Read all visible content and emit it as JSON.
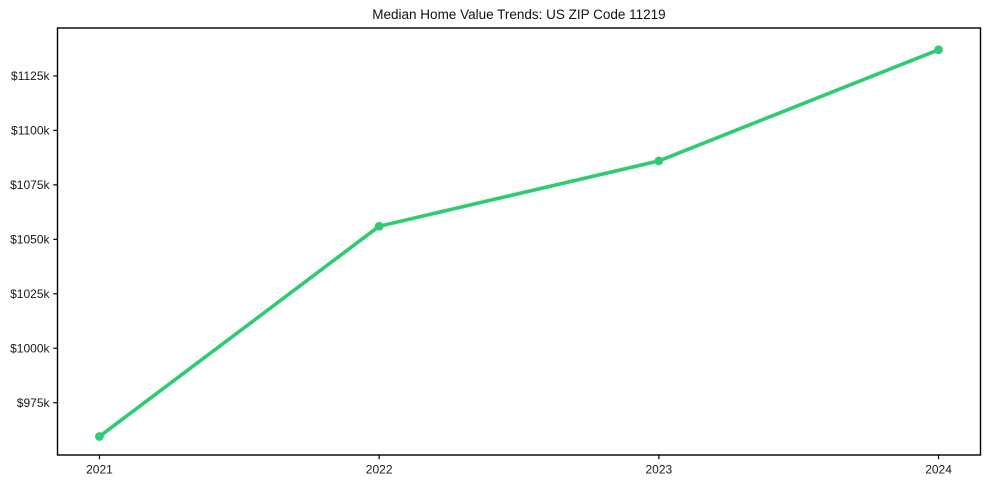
{
  "figure": {
    "background": "#ffffff",
    "text_color": "#1a1a1a",
    "spine_color": "#000000"
  },
  "chart_data": {
    "type": "line",
    "title": "Median Home Value Trends: US ZIP Code 11219",
    "xlabel": "",
    "ylabel": "",
    "units": "USD thousands",
    "x": [
      2021,
      2022,
      2023,
      2024
    ],
    "series": [
      {
        "name": "Median home value",
        "values": [
          959.5,
          1056,
          1086,
          1137
        ]
      }
    ],
    "xlim": [
      2020.85,
      2024.15
    ],
    "ylim": [
      951,
      1147
    ],
    "xticks": {
      "values": [
        2021,
        2022,
        2023,
        2024
      ],
      "labels": [
        "2021",
        "2022",
        "2023",
        "2024"
      ]
    },
    "yticks": {
      "values": [
        975,
        1000,
        1025,
        1050,
        1075,
        1100,
        1125
      ],
      "labels": [
        "$975k",
        "$1000k",
        "$1025k",
        "$1050k",
        "$1075k",
        "$1100k",
        "$1125k"
      ]
    },
    "grid": false,
    "legend": null,
    "line_color": "#2ecc71",
    "line_width": 3.6,
    "marker": "circle",
    "marker_size": 4.4
  }
}
